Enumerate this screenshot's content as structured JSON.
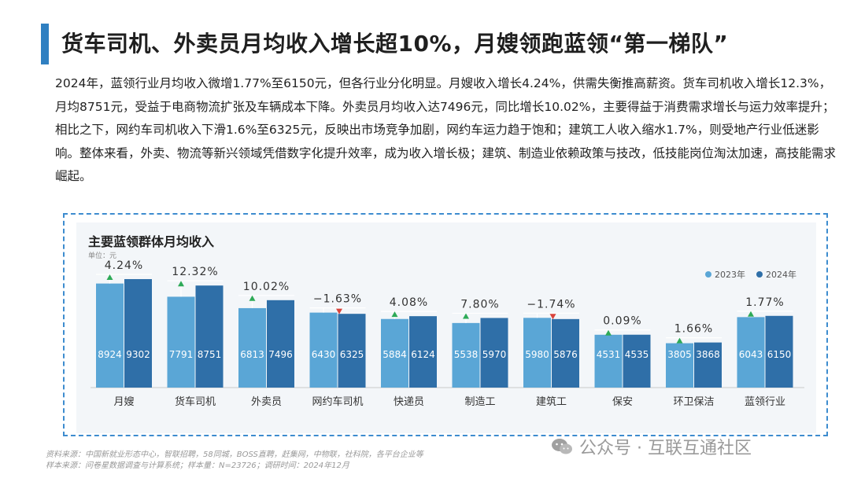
{
  "header": {
    "title": "货车司机、外卖员月均收入增长超10%，月嫂领跑蓝领“第一梯队”"
  },
  "body": {
    "paragraph": "2024年，蓝领行业月均收入微增1.77%至6150元，但各行业分化明显。月嫂收入增长4.24%，供需失衡推高薪资。货车司机收入增长12.3%，月均8751元，受益于电商物流扩张及车辆成本下降。外卖员月均收入达7496元，同比增长10.02%，主要得益于消费需求增长与运力效率提升；相比之下，网约车司机收入下滑1.6%至6325元，反映出市场竞争加剧，网约车运力趋于饱和；建筑工人收入缩水1.7%，则受地产行业低迷影响。整体来看，外卖、物流等新兴领域凭借数字化提升效率，成为收入增长极；建筑、制造业依赖政策与技改，低技能岗位淘汰加速，高技能需求崛起。"
  },
  "chart_data": {
    "type": "bar",
    "title": "主要蓝领群体月均收入",
    "unit": "单位：元",
    "categories": [
      "月嫂",
      "货车司机",
      "外卖员",
      "网约车司机",
      "快递员",
      "制造工",
      "建筑工",
      "保安",
      "环卫保洁",
      "蓝领行业"
    ],
    "series": [
      {
        "name": "2023年",
        "values": [
          8924,
          7791,
          6813,
          6430,
          5884,
          5538,
          5980,
          4531,
          3805,
          6043
        ]
      },
      {
        "name": "2024年",
        "values": [
          9302,
          8751,
          7496,
          6325,
          6124,
          5970,
          5876,
          4535,
          3868,
          6150
        ]
      }
    ],
    "growth_labels": [
      "4.24%",
      "12.32%",
      "10.02%",
      "-1.63%",
      "4.08%",
      "7.80%",
      "-1.74%",
      "0.09%",
      "1.66%",
      "1.77%"
    ],
    "ylim": [
      0,
      12000
    ],
    "legend_position": "top-right",
    "grid": false
  },
  "colors": {
    "series_2023": "#5aa6d6",
    "series_2024": "#2f6fa8",
    "up_marker": "#2eaa57",
    "down_marker": "#d9433b",
    "frame": "#3d8ccf"
  },
  "footer": {
    "source": "资料来源：中国新就业形态中心，智联招聘，58同城，BOSS直聘，赶集网，中物联，社科院，各平台企业等",
    "sample": "样本来源：问卷星数据调查与计算系统；样本量：N=23726；调研时间：2024年12月"
  },
  "watermark": {
    "text": "公众号 · 互联互通社区",
    "icon": "wechat-icon"
  }
}
